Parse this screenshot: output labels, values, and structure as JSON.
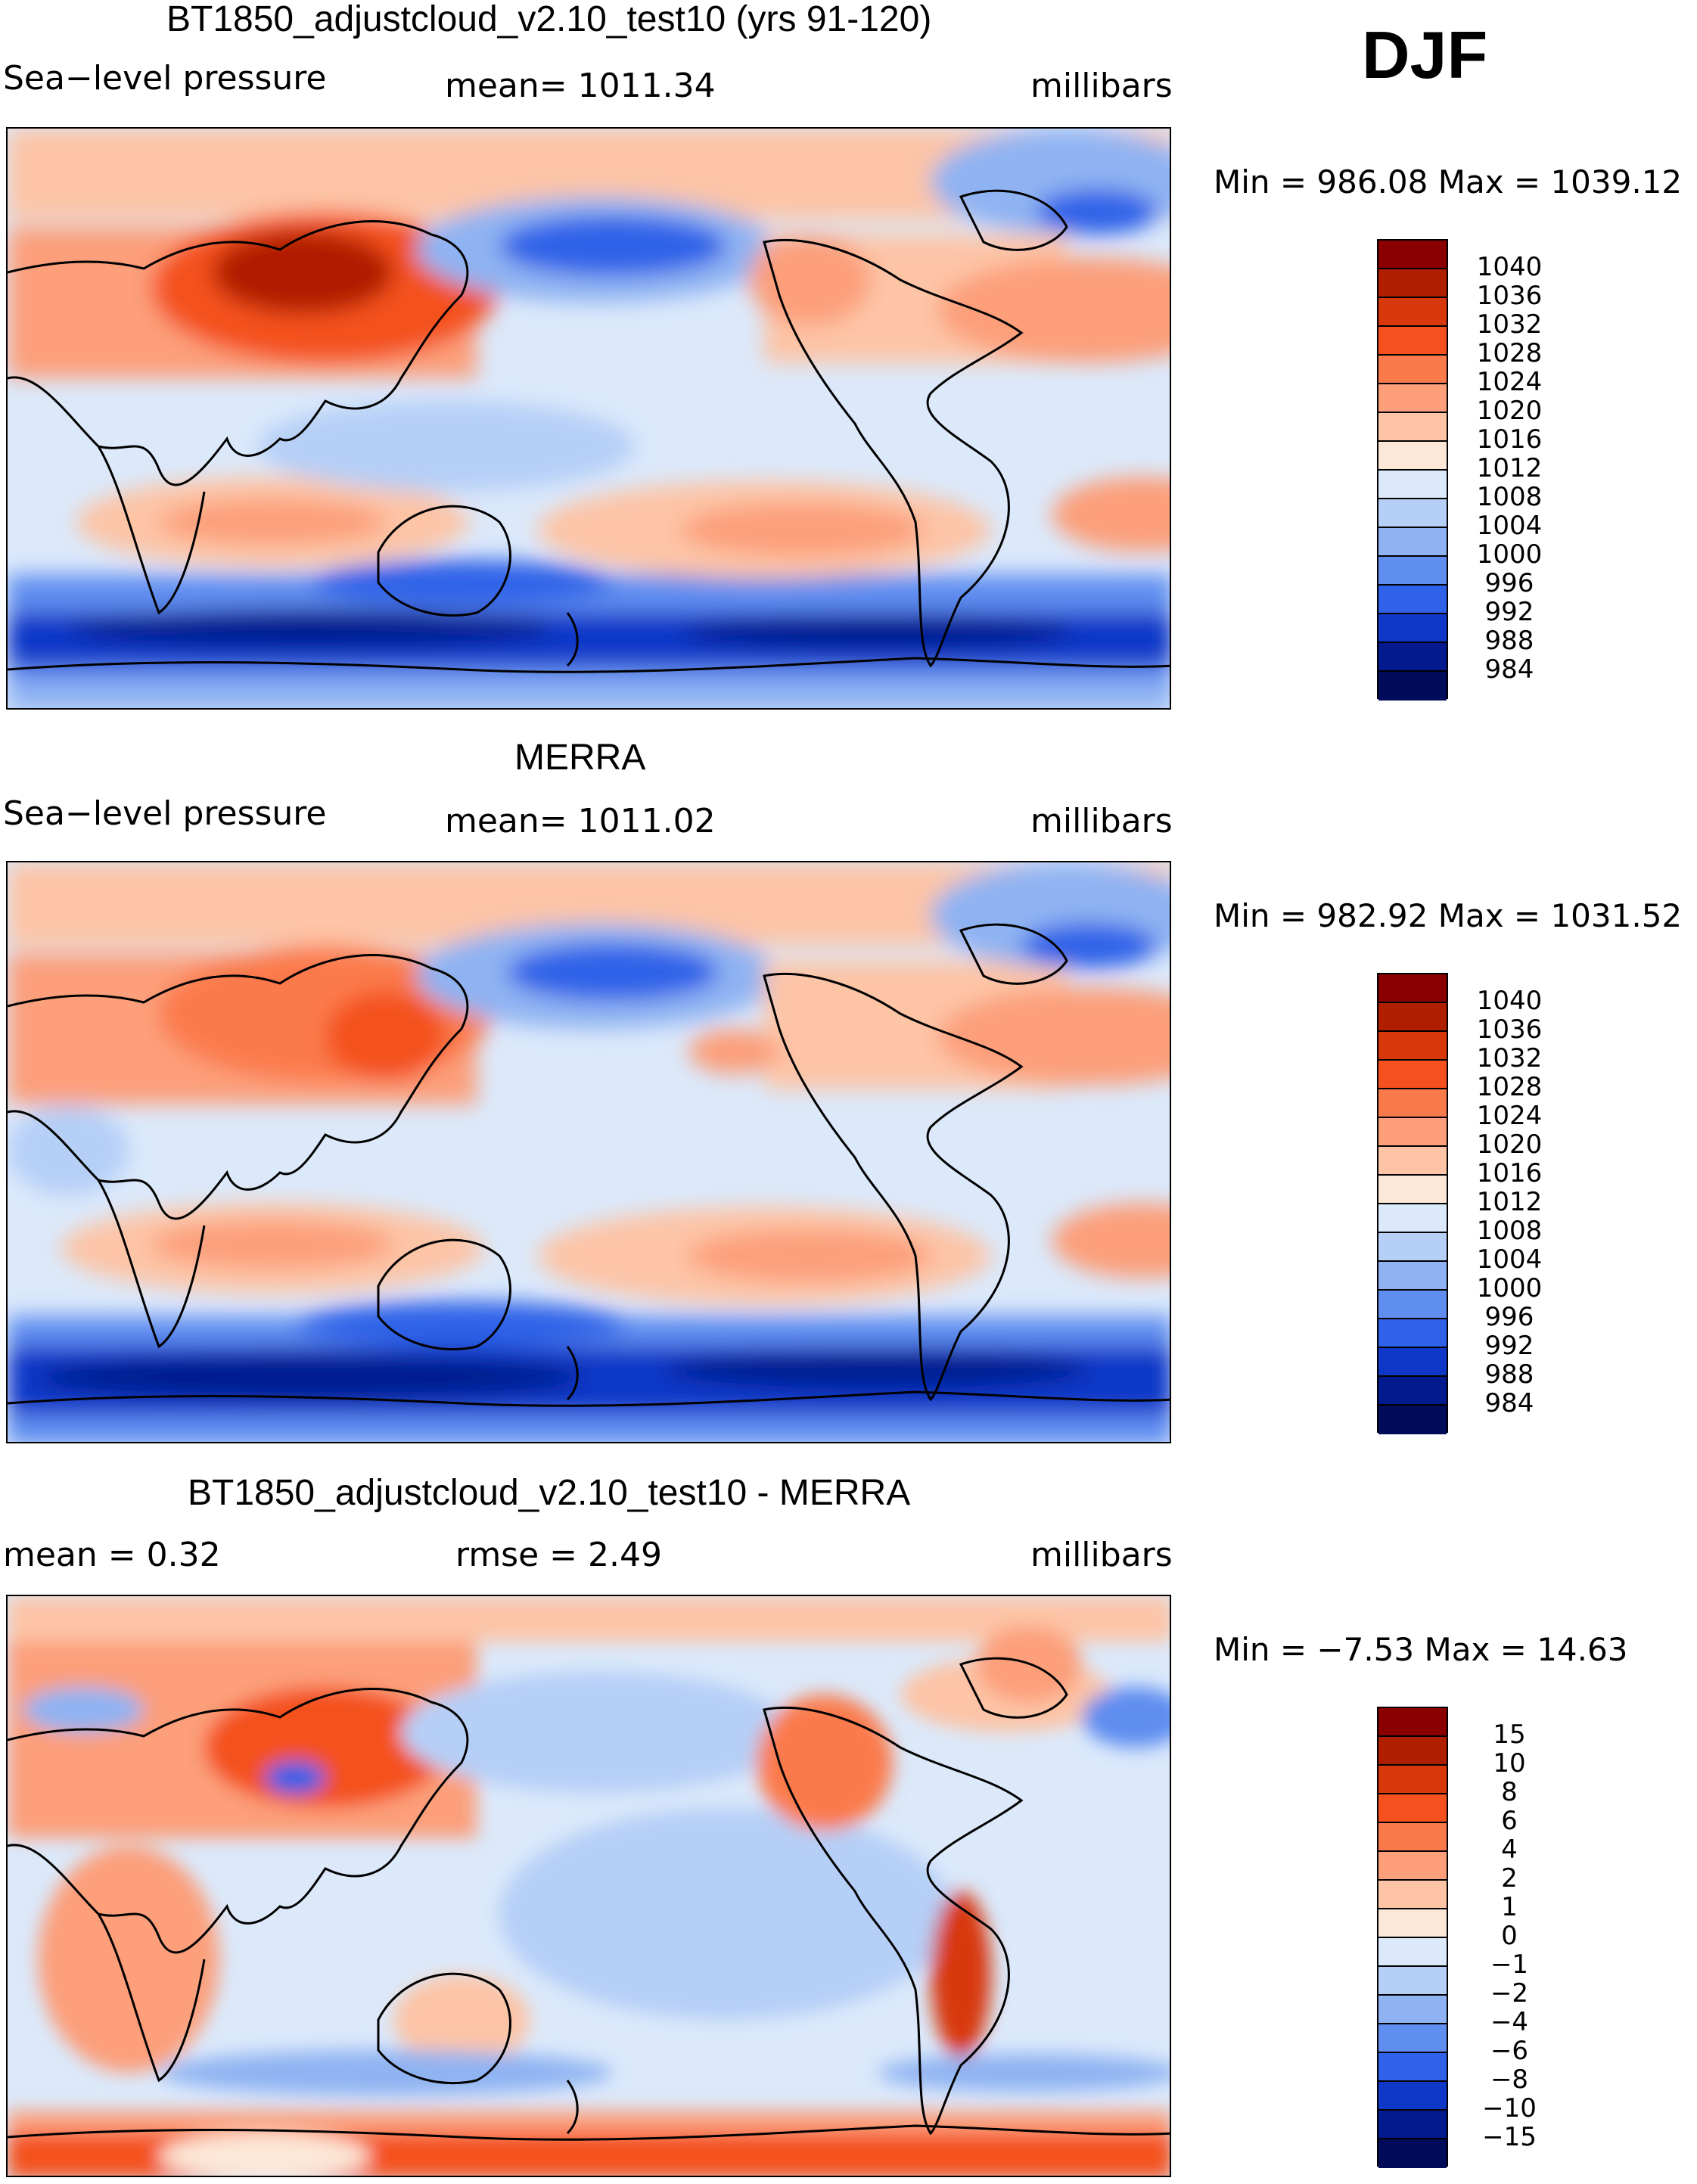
{
  "season": "DJF",
  "panels": [
    {
      "id": "model",
      "title": "BT1850_adjustcloud_v2.10_test10 (yrs 91-120)",
      "left_label": "Sea−level pressure",
      "center_label": "mean=  1011.34",
      "right_label": "millibars",
      "minmax": "Min  =  986.08  Max  =  1039.12",
      "colorbar": {
        "labels": [
          "1040",
          "1036",
          "1032",
          "1028",
          "1024",
          "1020",
          "1016",
          "1012",
          "1008",
          "1004",
          "1000",
          "996",
          "992",
          "988",
          "984"
        ],
        "colors": [
          "#8a0000",
          "#b01e00",
          "#d8380c",
          "#f4511e",
          "#fb7a4c",
          "#fc9f7a",
          "#fdc4a6",
          "#fde8d8",
          "#dbe9fb",
          "#b5cff7",
          "#8fb3f2",
          "#5f8df0",
          "#2f62e8",
          "#1038c8",
          "#031a8f",
          "#000c5a"
        ]
      }
    },
    {
      "id": "merra",
      "title": "MERRA",
      "left_label": "Sea−level pressure",
      "center_label": "mean=  1011.02",
      "right_label": "millibars",
      "minmax": "Min  =  982.92  Max  =  1031.52",
      "colorbar": {
        "labels": [
          "1040",
          "1036",
          "1032",
          "1028",
          "1024",
          "1020",
          "1016",
          "1012",
          "1008",
          "1004",
          "1000",
          "996",
          "992",
          "988",
          "984"
        ],
        "colors": [
          "#8a0000",
          "#b01e00",
          "#d8380c",
          "#f4511e",
          "#fb7a4c",
          "#fc9f7a",
          "#fdc4a6",
          "#fde8d8",
          "#dbe9fb",
          "#b5cff7",
          "#8fb3f2",
          "#5f8df0",
          "#2f62e8",
          "#1038c8",
          "#031a8f",
          "#000c5a"
        ]
      }
    },
    {
      "id": "diff",
      "title": "BT1850_adjustcloud_v2.10_test10 - MERRA",
      "left_label": "mean =     0.32",
      "center_label": "rmse =     2.49",
      "right_label": "millibars",
      "minmax": "Min  =    −7.53  Max  =    14.63",
      "colorbar": {
        "labels": [
          "15",
          "10",
          "8",
          "6",
          "4",
          "2",
          "1",
          "0",
          "−1",
          "−2",
          "−4",
          "−6",
          "−8",
          "−10",
          "−15"
        ],
        "colors": [
          "#8a0000",
          "#b01e00",
          "#d8380c",
          "#f4511e",
          "#fb7a4c",
          "#fc9f7a",
          "#fdc4a6",
          "#fde8d8",
          "#dbe9fb",
          "#b5cff7",
          "#8fb3f2",
          "#5f8df0",
          "#2f62e8",
          "#1038c8",
          "#031a8f",
          "#000c5a"
        ]
      }
    }
  ]
}
